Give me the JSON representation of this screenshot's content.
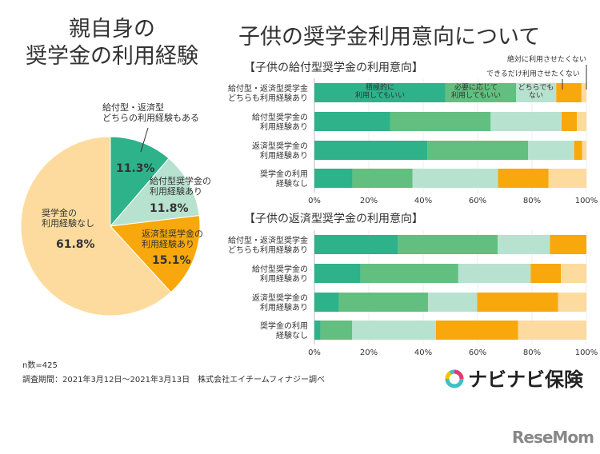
{
  "left_title": [
    "親自身の",
    "奨学金の利用経験"
  ],
  "right_title": "子供の奨学金利用意向について",
  "colors": {
    "dark_green": "#2db28a",
    "green": "#62bf7f",
    "mint": "#b8e2d0",
    "orange": "#f8a80c",
    "light_orange": "#fddb9e"
  },
  "chart_data": [
    {
      "type": "pie",
      "slices": [
        {
          "label": [
            "給付型・返済型",
            "どちらの利用経験もある"
          ],
          "value": 11.3,
          "value_label": "11.3%",
          "color": "#2db28a"
        },
        {
          "label": [
            "給付型奨学金の",
            "利用経験あり"
          ],
          "value": 11.8,
          "value_label": "11.8%",
          "color": "#b8e2d0"
        },
        {
          "label": [
            "返済型奨学金の",
            "利用経験あり"
          ],
          "value": 15.1,
          "value_label": "15.1%",
          "color": "#f8a80c"
        },
        {
          "label": [
            "奨学金の",
            "利用経験なし"
          ],
          "value": 61.8,
          "value_label": "61.8%",
          "color": "#fddb9e"
        }
      ]
    },
    {
      "type": "bar",
      "stacked": true,
      "orientation": "horizontal",
      "title": "【子供の給付型奨学金の利用意向】",
      "categories": [
        [
          "給付型・返済型奨学金",
          "どちらも利用経験あり"
        ],
        [
          "給付型奨学金の",
          "利用経験あり"
        ],
        [
          "返済型奨学金の",
          "利用経験あり"
        ],
        [
          "奨学金の利用",
          "経験なし"
        ]
      ],
      "series": [
        {
          "name": [
            "積極的に",
            "利用してもいい"
          ],
          "color": "#2db28a",
          "values": [
            48.1,
            27.8,
            41.5,
            14.0
          ]
        },
        {
          "name": [
            "必要に応じて",
            "利用してもいい"
          ],
          "color": "#62bf7f",
          "values": [
            26.1,
            37.0,
            37.1,
            22.1
          ]
        },
        {
          "name": [
            "どちらでも",
            "ない"
          ],
          "color": "#b8e2d0",
          "values": [
            14.7,
            26.1,
            16.9,
            31.4
          ]
        },
        {
          "name": [
            "できるだけ利用させたくない"
          ],
          "color": "#f8a80c",
          "values": [
            9.3,
            5.6,
            2.9,
            18.6
          ]
        },
        {
          "name": [
            "絶対に利用させたくない"
          ],
          "color": "#fddb9e",
          "values": [
            1.8,
            3.5,
            1.6,
            13.9
          ]
        }
      ],
      "xlim": [
        0,
        100
      ],
      "xticks": [
        "0%",
        "20%",
        "40%",
        "60%",
        "80%",
        "100%"
      ],
      "grid": true
    },
    {
      "type": "bar",
      "stacked": true,
      "orientation": "horizontal",
      "title": "【子供の返済型奨学金の利用意向】",
      "categories": [
        [
          "給付型・返済型奨学金",
          "どちらも利用経験あり"
        ],
        [
          "給付型奨学金の",
          "利用経験あり"
        ],
        [
          "返済型奨学金の",
          "利用経験あり"
        ],
        [
          "奨学金の利用",
          "経験なし"
        ]
      ],
      "series": [
        {
          "color": "#2db28a",
          "values": [
            30.7,
            17.0,
            9.0,
            2.3
          ]
        },
        {
          "color": "#62bf7f",
          "values": [
            36.7,
            35.9,
            32.8,
            11.6
          ]
        },
        {
          "color": "#b8e2d0",
          "values": [
            19.2,
            26.6,
            18.0,
            30.8
          ]
        },
        {
          "color": "#f8a80c",
          "values": [
            13.4,
            11.1,
            29.8,
            30.2
          ]
        },
        {
          "color": "#fddb9e",
          "values": [
            0.0,
            9.4,
            10.4,
            25.1
          ]
        }
      ],
      "xlim": [
        0,
        100
      ],
      "xticks": [
        "0%",
        "20%",
        "40%",
        "60%",
        "80%",
        "100%"
      ],
      "grid": true
    }
  ],
  "footer": {
    "n": "n数=425",
    "period": "調査期間：2021年3月12日〜2021年3月13日　株式会社エイチームフィナジー調べ"
  },
  "logo": {
    "text": "ナビナビ保険"
  },
  "watermark": "ReseMom"
}
